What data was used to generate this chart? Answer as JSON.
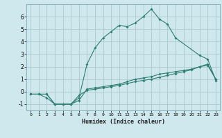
{
  "title": "",
  "xlabel": "Humidex (Indice chaleur)",
  "ylabel": "",
  "background_color": "#cfe8ed",
  "grid_color": "#aac8d0",
  "line_color": "#2e7d72",
  "xlim": [
    -0.5,
    23.5
  ],
  "ylim": [
    -1.5,
    7.0
  ],
  "xticks": [
    0,
    1,
    2,
    3,
    4,
    5,
    6,
    7,
    8,
    9,
    10,
    11,
    12,
    13,
    14,
    15,
    16,
    17,
    18,
    19,
    20,
    21,
    22,
    23
  ],
  "yticks": [
    -1,
    0,
    1,
    2,
    3,
    4,
    5,
    6
  ],
  "line1_x": [
    0,
    1,
    2,
    3,
    4,
    5,
    6,
    7,
    8,
    9,
    10,
    11,
    12,
    13,
    14,
    15,
    16,
    17,
    18,
    19,
    20,
    21,
    22,
    23
  ],
  "line1_y": [
    -0.2,
    -0.2,
    -0.2,
    -1.0,
    -1.0,
    -1.0,
    -0.7,
    0.2,
    0.3,
    0.4,
    0.5,
    0.6,
    0.8,
    1.0,
    1.1,
    1.2,
    1.4,
    1.5,
    1.6,
    1.7,
    1.8,
    2.0,
    2.1,
    1.0
  ],
  "line2_x": [
    0,
    1,
    2,
    3,
    4,
    5,
    6,
    7,
    8,
    9,
    10,
    11,
    12,
    13,
    14,
    15,
    16,
    17,
    18,
    19,
    20,
    21,
    22,
    23
  ],
  "line2_y": [
    -0.2,
    -0.2,
    -0.5,
    -1.0,
    -1.0,
    -1.0,
    -0.3,
    0.1,
    0.2,
    0.3,
    0.4,
    0.5,
    0.65,
    0.8,
    0.9,
    1.0,
    1.15,
    1.3,
    1.45,
    1.6,
    1.75,
    2.0,
    2.2,
    1.0
  ],
  "line3_x": [
    0,
    2,
    3,
    4,
    5,
    6,
    7,
    8,
    9,
    10,
    11,
    12,
    13,
    14,
    15,
    16,
    17,
    18,
    21,
    22,
    23
  ],
  "line3_y": [
    -0.2,
    -0.2,
    -1.0,
    -1.0,
    -1.0,
    -0.5,
    2.2,
    3.5,
    4.3,
    4.8,
    5.3,
    5.2,
    5.5,
    6.0,
    6.6,
    5.8,
    5.4,
    4.3,
    2.9,
    2.6,
    0.9
  ]
}
